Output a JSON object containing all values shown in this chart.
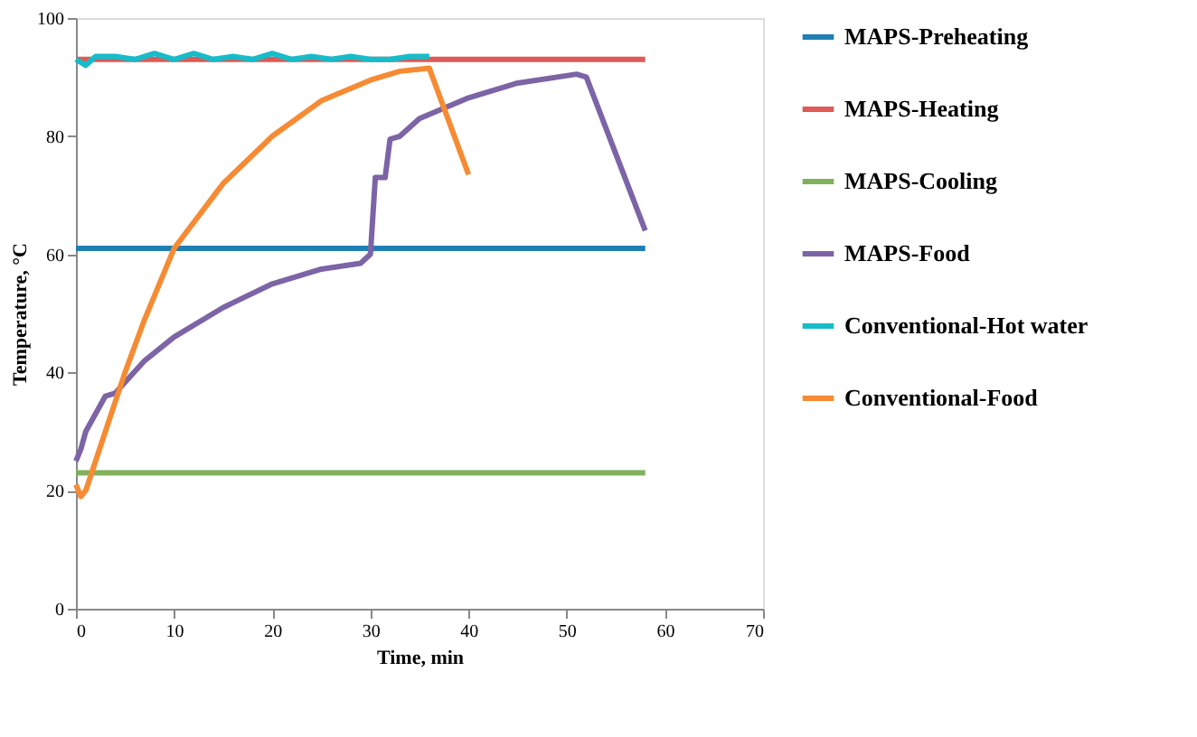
{
  "chart_data": {
    "type": "line",
    "xlabel": "Time, min",
    "ylabel": "Temperature, °C",
    "xlim": [
      0,
      70
    ],
    "xticks": [
      0,
      10,
      20,
      30,
      40,
      50,
      60,
      70
    ],
    "ylim": [
      0,
      100
    ],
    "yticks": [
      0,
      20,
      40,
      60,
      80,
      100
    ],
    "grid": false,
    "legend": "right",
    "marker": "none",
    "line_style": "solid",
    "series": [
      {
        "name": "MAPS-Preheating",
        "color": "#1f7fb4",
        "x": [
          0,
          58
        ],
        "values": [
          61,
          61
        ]
      },
      {
        "name": "MAPS-Heating",
        "color": "#de5a56",
        "x": [
          0,
          58
        ],
        "values": [
          93,
          93
        ]
      },
      {
        "name": "MAPS-Cooling",
        "color": "#7fb25a",
        "x": [
          0,
          58
        ],
        "values": [
          23,
          23
        ]
      },
      {
        "name": "MAPS-Food",
        "color": "#7c64a6",
        "x": [
          0,
          0.5,
          1,
          3,
          4,
          7,
          10,
          15,
          20,
          25,
          29,
          30,
          30.5,
          31.5,
          32,
          33,
          35,
          40,
          45,
          51,
          52,
          55,
          58
        ],
        "values": [
          25,
          27,
          30,
          36,
          36.5,
          42,
          46,
          51,
          55,
          57.5,
          58.5,
          60,
          73,
          73,
          79.5,
          80,
          83,
          86.5,
          89,
          90.5,
          90,
          77,
          64
        ]
      },
      {
        "name": "Conventional-Hot water",
        "color": "#17bcc9",
        "x": [
          0,
          1,
          2,
          4,
          6,
          8,
          10,
          12,
          14,
          16,
          18,
          20,
          22,
          24,
          26,
          28,
          30,
          32,
          34,
          36
        ],
        "values": [
          93,
          92,
          93.5,
          93.5,
          93,
          94,
          93,
          94,
          93,
          93.5,
          93,
          94,
          93,
          93.5,
          93,
          93.5,
          93,
          93,
          93.5,
          93.5
        ]
      },
      {
        "name": "Conventional-Food",
        "color": "#f68b33",
        "x": [
          0,
          0.5,
          1,
          2,
          3,
          5,
          7,
          10,
          15,
          20,
          25,
          30,
          33,
          36,
          40
        ],
        "values": [
          21,
          19,
          20,
          25,
          30,
          40,
          49,
          61,
          72,
          80,
          86,
          89.5,
          91,
          91.5,
          73.5
        ]
      }
    ]
  }
}
